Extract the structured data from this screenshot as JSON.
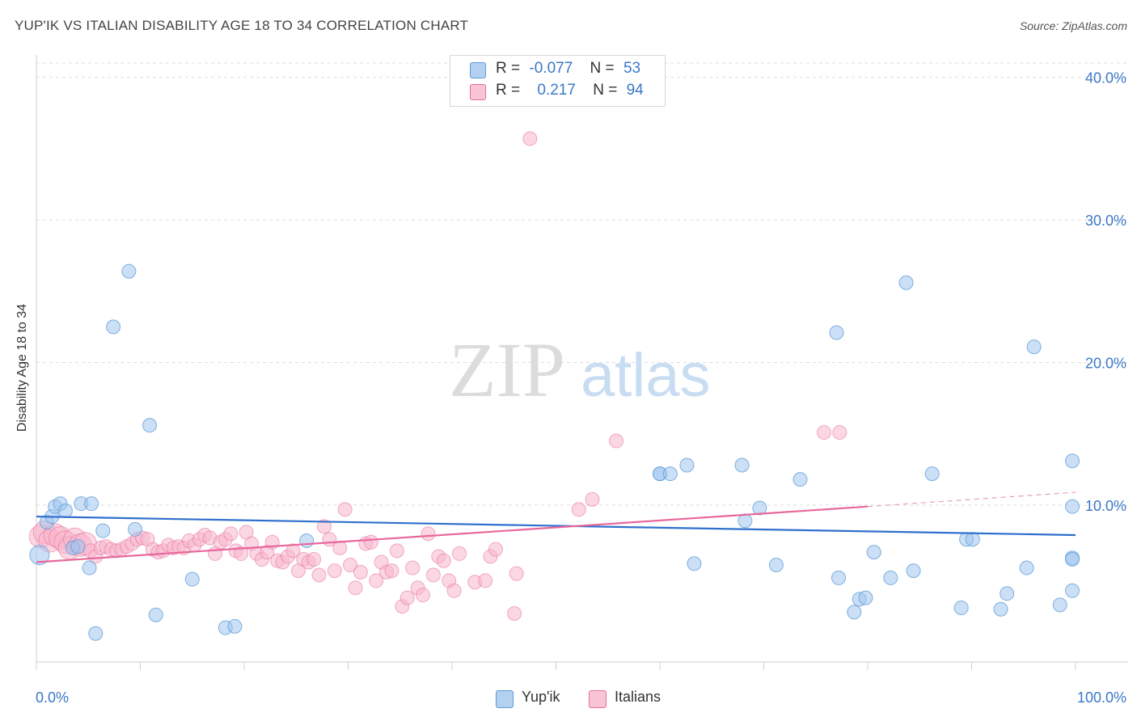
{
  "title": "YUP'IK VS ITALIAN DISABILITY AGE 18 TO 34 CORRELATION CHART",
  "source": "Source: ZipAtlas.com",
  "watermark": {
    "zip": "ZIP",
    "atlas": "atlas"
  },
  "colors": {
    "blue": "#5b9bd5",
    "blue_fill": "rgba(160,196,238,0.55)",
    "pink": "#e86d9a",
    "pink_fill": "rgba(247,182,204,0.55)",
    "tick_text": "#3a78c8"
  },
  "legend": {
    "rows": [
      {
        "r_label": "R =",
        "r_value": "-0.077",
        "n_label": "N =",
        "n_value": "53"
      },
      {
        "r_label": "R =",
        "r_value": "0.217",
        "n_label": "N =",
        "n_value": "94"
      }
    ]
  },
  "bottom_legend": [
    "Yup'ik",
    "Italians"
  ],
  "chart_data": {
    "type": "scatter",
    "title": "YUP'IK VS ITALIAN DISABILITY AGE 18 TO 34 CORRELATION CHART",
    "xlabel": "",
    "ylabel": "Disability Age 18 to 34",
    "xlim": [
      0,
      100
    ],
    "ylim": [
      -1,
      41
    ],
    "x_tick_labels": [
      "0.0%",
      "100.0%"
    ],
    "y_ticks": [
      10,
      20,
      30,
      40
    ],
    "y_tick_labels": [
      "10.0%",
      "20.0%",
      "30.0%",
      "40.0%"
    ],
    "grid": true,
    "legend_position": "top-center",
    "series": [
      {
        "name": "Yup'ik",
        "color": "#5b9bd5",
        "R": -0.077,
        "N": 53,
        "trend": {
          "x": [
            0,
            100
          ],
          "y": [
            9.2,
            7.9
          ]
        },
        "points": [
          [
            0.3,
            6.5
          ],
          [
            1.0,
            8.8
          ],
          [
            1.5,
            9.2
          ],
          [
            1.8,
            9.9
          ],
          [
            2.3,
            10.1
          ],
          [
            2.8,
            9.6
          ],
          [
            3.5,
            7.0
          ],
          [
            4.0,
            7.1
          ],
          [
            4.3,
            10.1
          ],
          [
            5.1,
            5.6
          ],
          [
            5.3,
            10.1
          ],
          [
            5.7,
            1.0
          ],
          [
            6.4,
            8.2
          ],
          [
            7.4,
            22.5
          ],
          [
            8.9,
            26.4
          ],
          [
            9.5,
            8.3
          ],
          [
            10.9,
            15.6
          ],
          [
            11.5,
            2.3
          ],
          [
            15.0,
            4.8
          ],
          [
            18.2,
            1.4
          ],
          [
            19.1,
            1.5
          ],
          [
            26.0,
            7.5
          ],
          [
            60.0,
            12.2
          ],
          [
            60.0,
            12.2
          ],
          [
            61.0,
            12.2
          ],
          [
            62.6,
            12.8
          ],
          [
            63.3,
            5.9
          ],
          [
            67.9,
            12.8
          ],
          [
            68.2,
            8.9
          ],
          [
            69.6,
            9.8
          ],
          [
            71.2,
            5.8
          ],
          [
            73.5,
            11.8
          ],
          [
            77.0,
            22.1
          ],
          [
            77.2,
            4.9
          ],
          [
            78.7,
            2.5
          ],
          [
            79.2,
            3.4
          ],
          [
            79.8,
            3.5
          ],
          [
            80.6,
            6.7
          ],
          [
            82.2,
            4.9
          ],
          [
            83.7,
            25.6
          ],
          [
            84.4,
            5.4
          ],
          [
            86.2,
            12.2
          ],
          [
            89.0,
            2.8
          ],
          [
            89.5,
            7.6
          ],
          [
            90.1,
            7.6
          ],
          [
            92.8,
            2.7
          ],
          [
            93.4,
            3.8
          ],
          [
            95.3,
            5.6
          ],
          [
            96.0,
            21.1
          ],
          [
            98.5,
            3.0
          ],
          [
            100.0,
            6.3
          ],
          [
            100.1,
            6.2
          ],
          [
            100.9,
            4.0
          ],
          [
            102.5,
            13.1
          ],
          [
            103.0,
            9.9
          ]
        ]
      },
      {
        "name": "Italians",
        "color": "#e86d9a",
        "R": 0.217,
        "N": 94,
        "trend": {
          "x": [
            0,
            80
          ],
          "y": [
            6.0,
            9.9
          ]
        },
        "trend_dashed": {
          "x": [
            80,
            100
          ],
          "y": [
            9.9,
            10.9
          ]
        },
        "points": [
          [
            0.4,
            7.8
          ],
          [
            0.8,
            8.1
          ],
          [
            1.3,
            7.5
          ],
          [
            1.8,
            7.9
          ],
          [
            2.3,
            7.7
          ],
          [
            2.8,
            7.4
          ],
          [
            3.2,
            7.0
          ],
          [
            3.7,
            7.6
          ],
          [
            4.2,
            7.2
          ],
          [
            4.7,
            7.3
          ],
          [
            5.2,
            6.8
          ],
          [
            5.7,
            6.4
          ],
          [
            6.2,
            7.0
          ],
          [
            6.7,
            7.1
          ],
          [
            7.2,
            6.9
          ],
          [
            7.7,
            6.8
          ],
          [
            8.2,
            6.9
          ],
          [
            8.7,
            7.1
          ],
          [
            9.2,
            7.3
          ],
          [
            9.7,
            7.6
          ],
          [
            10.2,
            7.7
          ],
          [
            10.7,
            7.6
          ],
          [
            11.2,
            6.9
          ],
          [
            11.7,
            6.7
          ],
          [
            12.2,
            6.8
          ],
          [
            12.7,
            7.2
          ],
          [
            13.2,
            7.0
          ],
          [
            13.7,
            7.1
          ],
          [
            14.2,
            7.0
          ],
          [
            14.7,
            7.5
          ],
          [
            15.2,
            7.2
          ],
          [
            15.7,
            7.6
          ],
          [
            16.2,
            7.9
          ],
          [
            16.7,
            7.7
          ],
          [
            17.2,
            6.6
          ],
          [
            17.7,
            7.4
          ],
          [
            18.2,
            7.6
          ],
          [
            18.7,
            8.0
          ],
          [
            19.2,
            6.8
          ],
          [
            19.7,
            6.6
          ],
          [
            20.2,
            8.1
          ],
          [
            20.7,
            7.3
          ],
          [
            21.2,
            6.6
          ],
          [
            21.7,
            6.2
          ],
          [
            22.2,
            6.7
          ],
          [
            22.7,
            7.4
          ],
          [
            23.2,
            6.1
          ],
          [
            23.7,
            6.0
          ],
          [
            24.2,
            6.4
          ],
          [
            24.7,
            6.8
          ],
          [
            25.2,
            5.4
          ],
          [
            25.7,
            6.2
          ],
          [
            26.2,
            6.0
          ],
          [
            26.7,
            6.2
          ],
          [
            27.2,
            5.1
          ],
          [
            27.7,
            8.5
          ],
          [
            28.2,
            7.6
          ],
          [
            28.7,
            5.4
          ],
          [
            29.2,
            7.0
          ],
          [
            29.7,
            9.7
          ],
          [
            30.2,
            5.8
          ],
          [
            30.7,
            4.2
          ],
          [
            31.2,
            5.3
          ],
          [
            31.7,
            7.3
          ],
          [
            32.2,
            7.4
          ],
          [
            32.7,
            4.7
          ],
          [
            33.2,
            6.0
          ],
          [
            33.7,
            5.3
          ],
          [
            34.2,
            5.4
          ],
          [
            34.7,
            6.8
          ],
          [
            35.2,
            2.9
          ],
          [
            35.7,
            3.5
          ],
          [
            36.2,
            5.6
          ],
          [
            36.7,
            4.2
          ],
          [
            37.2,
            3.7
          ],
          [
            37.7,
            8.0
          ],
          [
            38.2,
            5.1
          ],
          [
            38.7,
            6.4
          ],
          [
            39.2,
            6.1
          ],
          [
            39.7,
            4.7
          ],
          [
            40.2,
            4.0
          ],
          [
            40.7,
            6.6
          ],
          [
            42.2,
            4.6
          ],
          [
            43.2,
            4.7
          ],
          [
            43.7,
            6.4
          ],
          [
            44.2,
            6.9
          ],
          [
            46.2,
            5.2
          ],
          [
            46.0,
            2.4
          ],
          [
            47.5,
            35.7
          ],
          [
            52.2,
            9.7
          ],
          [
            53.5,
            10.4
          ],
          [
            55.8,
            14.5
          ],
          [
            75.8,
            15.1
          ],
          [
            77.3,
            15.1
          ]
        ]
      }
    ]
  }
}
